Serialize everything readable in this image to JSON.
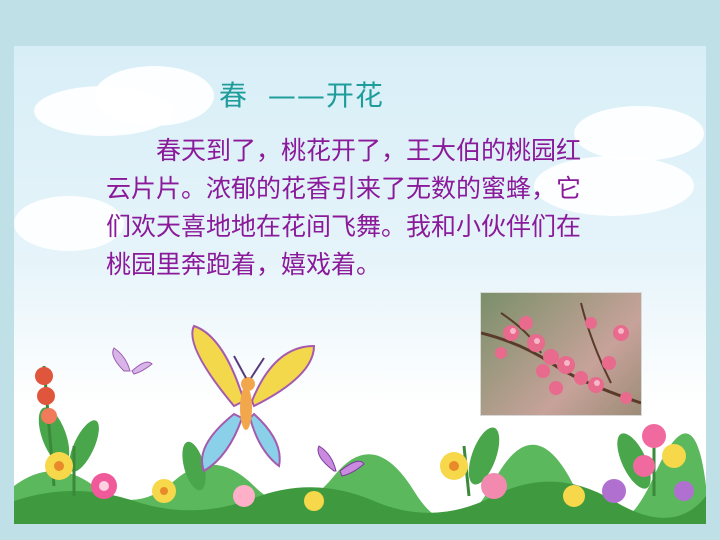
{
  "title": {
    "main": "春",
    "dash": "——",
    "sub": "开花"
  },
  "paragraph": "春天到了，桃花开了，王大伯的桃园红云片片。浓郁的花香引来了无数的蜜蜂，它们欢天喜地地在花间飞舞。我和小伙伴们在桃园里奔跑着，嬉戏着。",
  "colors": {
    "title": "#1f9d9b",
    "text": "#8a1a9a",
    "frame": "#bfe0e6",
    "sky": "#d8eef7"
  },
  "illustrations": {
    "photo": "peach-blossom-photo",
    "scene": "flowers-butterflies-illustration"
  }
}
